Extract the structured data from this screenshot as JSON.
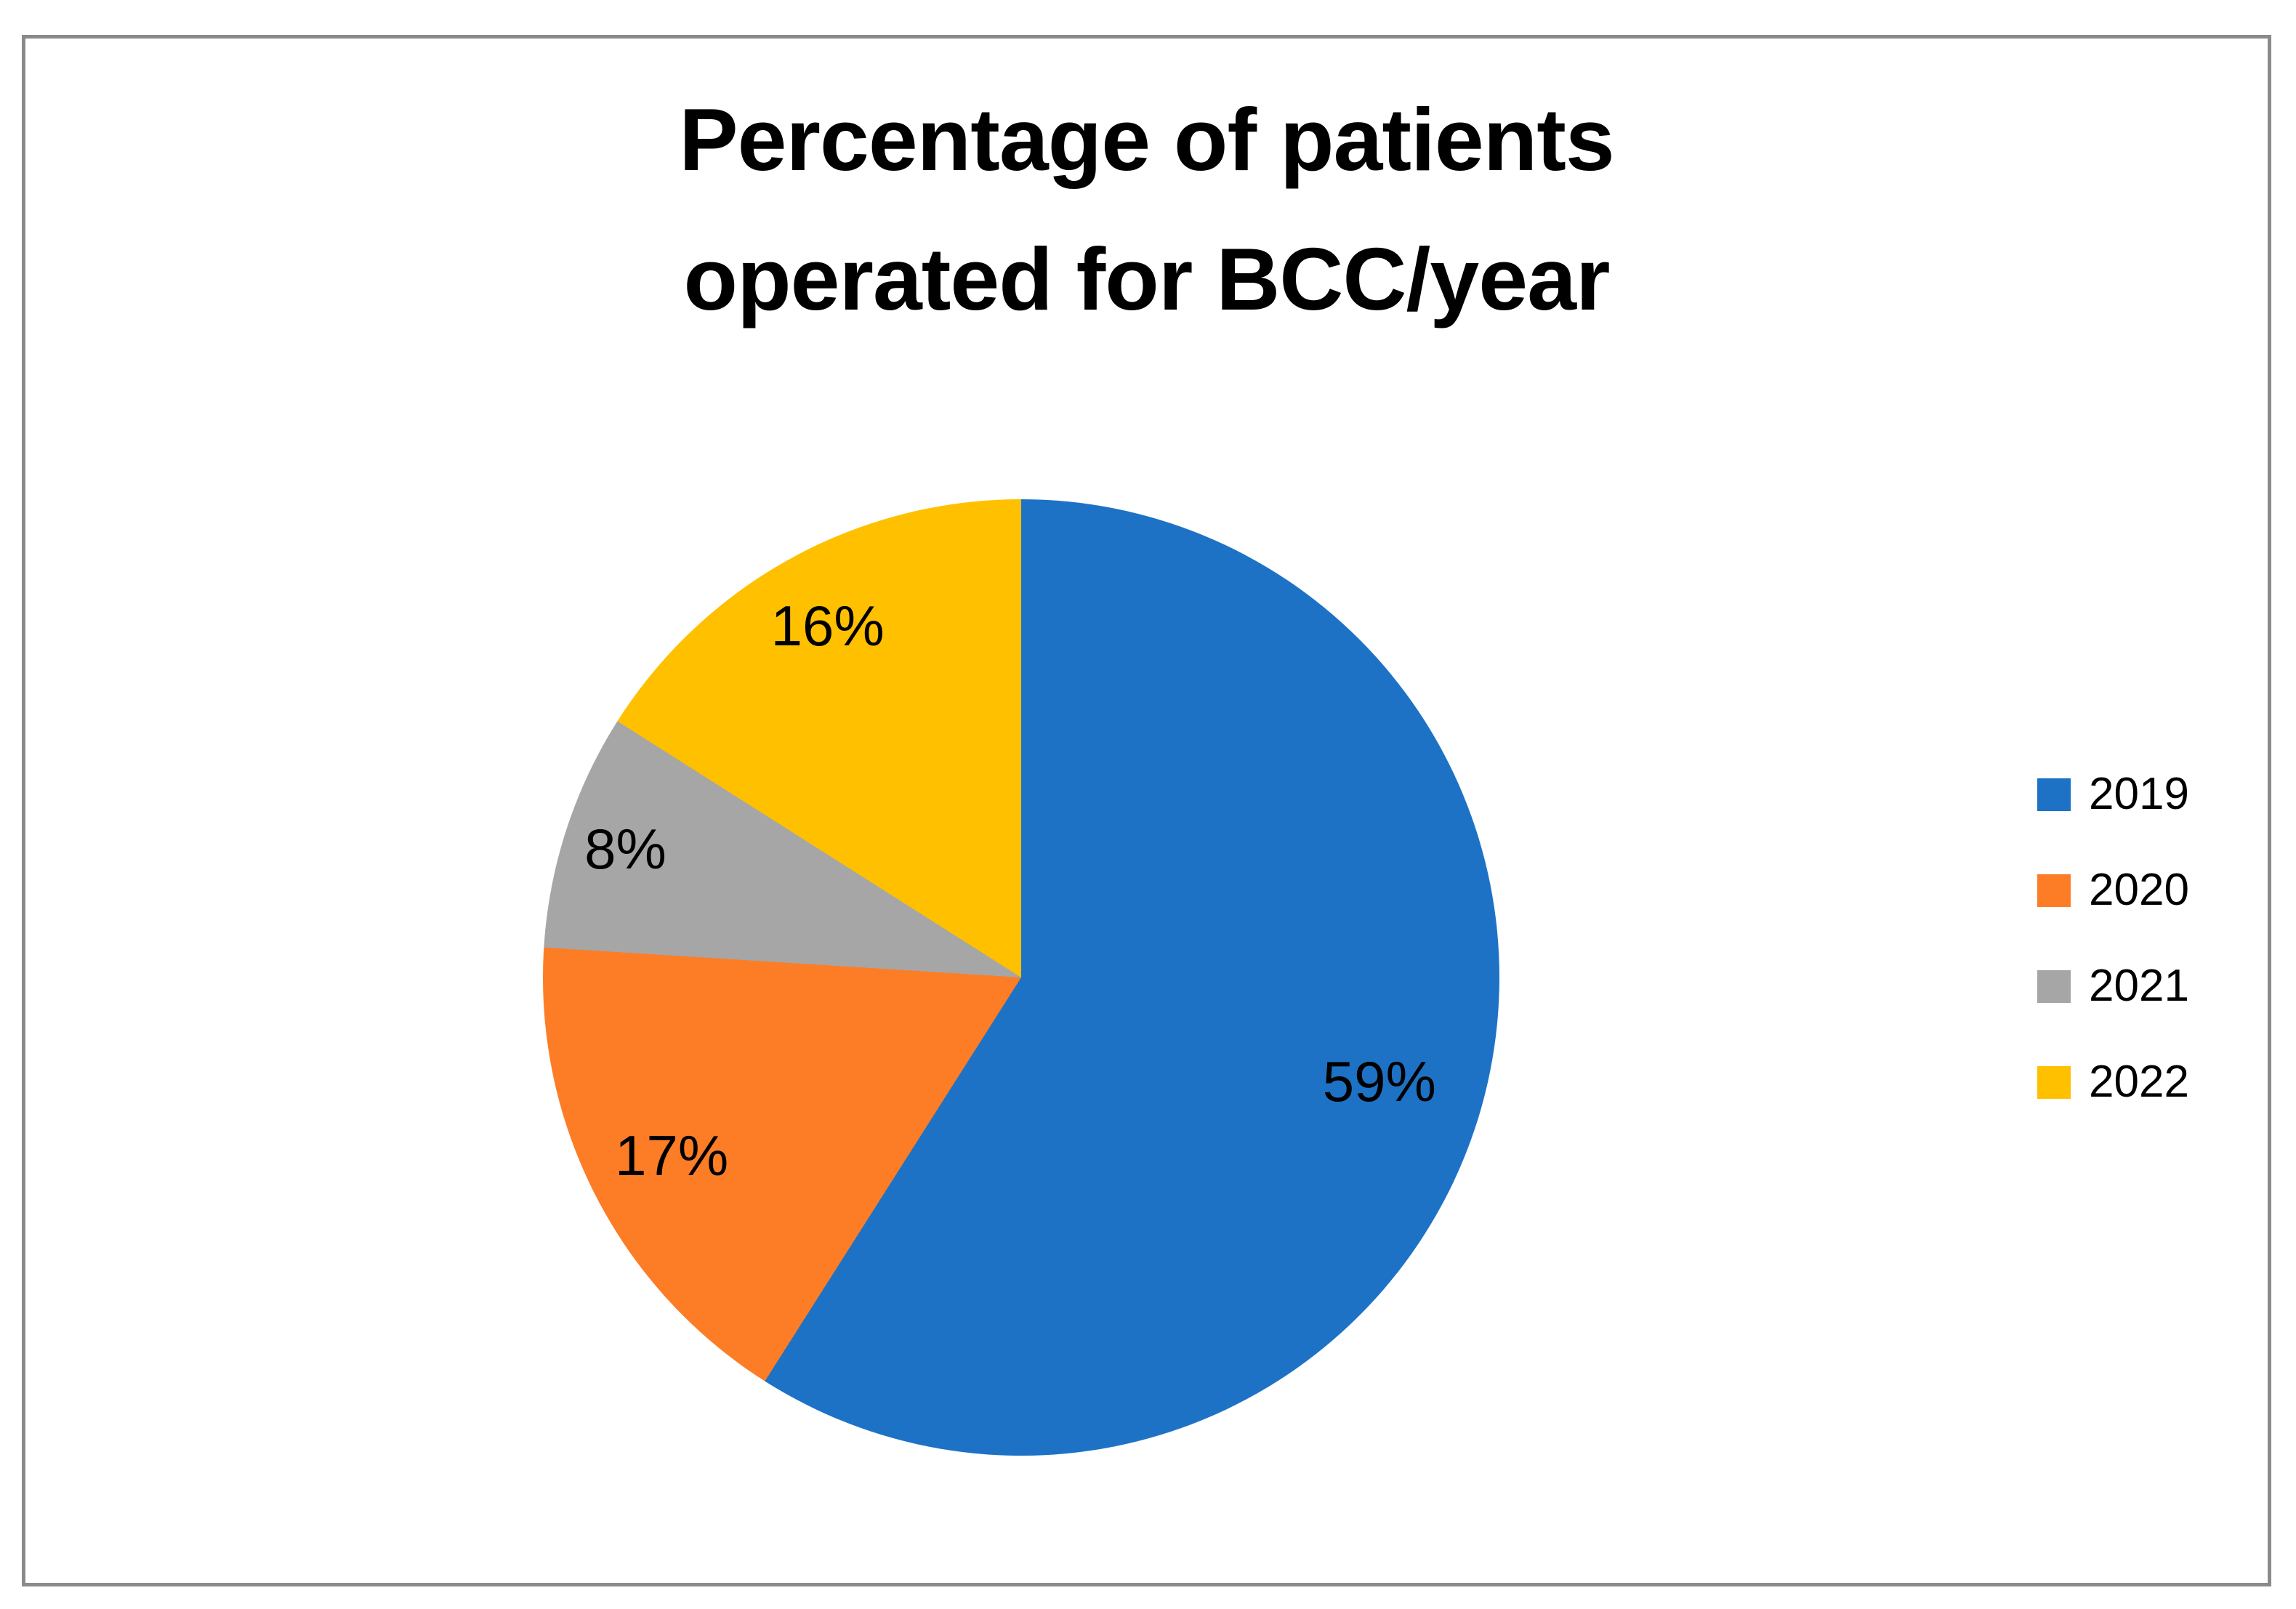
{
  "chart_data": {
    "type": "pie",
    "title": "Percentage of patients operated for BCC/year",
    "title_lines": [
      "Percentage of patients",
      "operated for BCC/year"
    ],
    "series": [
      {
        "label": "2019",
        "value": 59,
        "display": "59%",
        "color": "#1d72c6"
      },
      {
        "label": "2020",
        "value": 17,
        "display": "17%",
        "color": "#fc7d26"
      },
      {
        "label": "2021",
        "value": 8,
        "display": "8%",
        "color": "#a6a6a6"
      },
      {
        "label": "2022",
        "value": 16,
        "display": "16%",
        "color": "#ffc000"
      }
    ],
    "start_angle_deg": 0,
    "direction": "clockwise",
    "legend_position": "right",
    "data_labels": "percent-inside"
  },
  "frame": {
    "border_color": "#8a8a8a",
    "background": "#ffffff"
  }
}
